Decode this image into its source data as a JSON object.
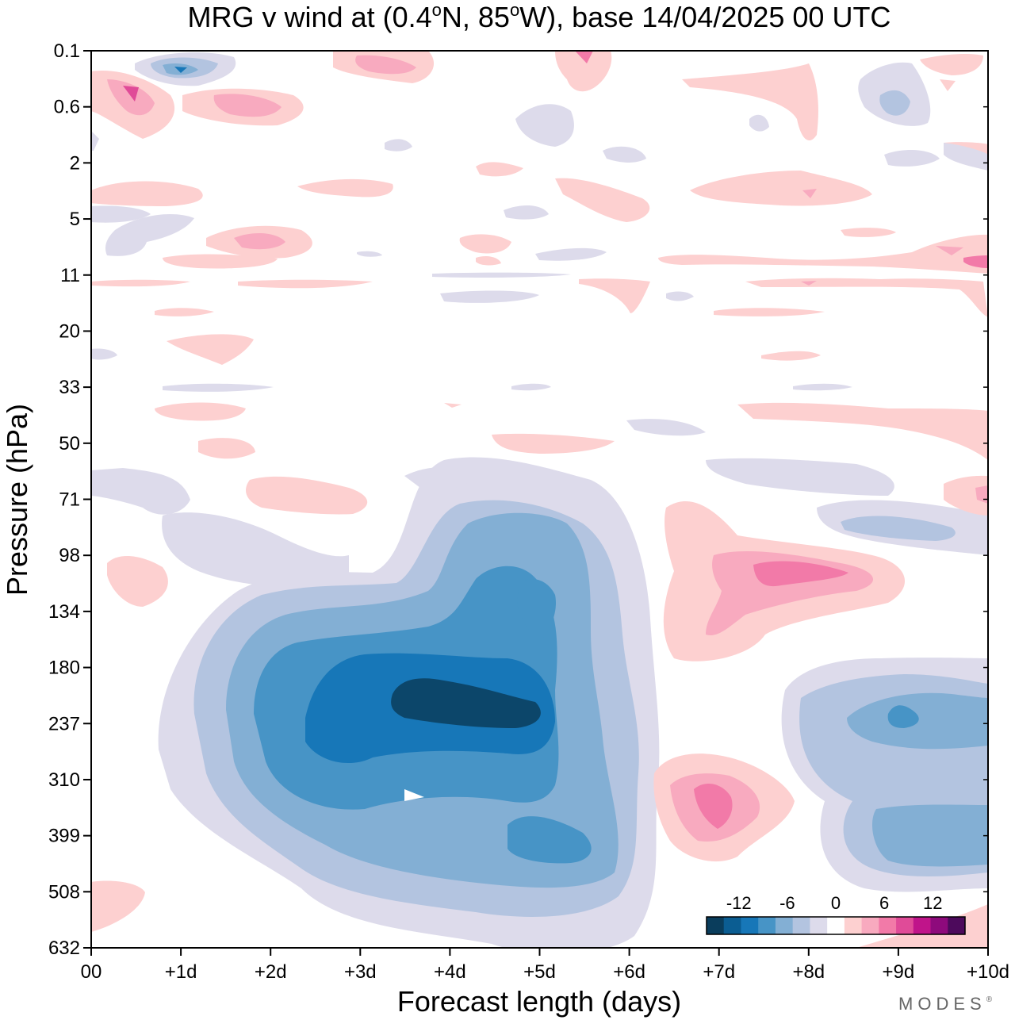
{
  "chart_data": {
    "type": "heatmap",
    "subtype": "filled-contour",
    "title": "MRG v wind at (0.4°N, 85°W),  base 14/04/2025  00 UTC",
    "title_parts": {
      "prefix": "MRG v wind at (0.4",
      "lat_deg": "o",
      "lat_suffix": "N, 85",
      "lon_deg": "o",
      "rest": "W),  base 14/04/2025  00 UTC"
    },
    "xlabel": "Forecast length (days)",
    "ylabel": "Pressure (hPa)",
    "x_ticks": [
      "00",
      "+1d",
      "+2d",
      "+3d",
      "+4d",
      "+5d",
      "+6d",
      "+7d",
      "+8d",
      "+9d",
      "+10d"
    ],
    "xlim_days": [
      0,
      10
    ],
    "y_ticks": [
      "0.1",
      "0.6",
      "2",
      "5",
      "11",
      "20",
      "33",
      "50",
      "71",
      "98",
      "134",
      "180",
      "237",
      "310",
      "399",
      "508",
      "632"
    ],
    "y_scale": "log-pressure, top 0.1 hPa to bottom 632 hPa",
    "colorbar": {
      "tick_labels": [
        "-12",
        "-6",
        "0",
        "6",
        "12"
      ],
      "tick_values": [
        -12,
        -6,
        0,
        6,
        12
      ],
      "levels": [
        -16,
        -14,
        -12,
        -10,
        -8,
        -6,
        -4,
        -2,
        2,
        4,
        6,
        8,
        10,
        12,
        14,
        16
      ],
      "colors": [
        "#0a3d5c",
        "#0b5d92",
        "#1777b8",
        "#4794c6",
        "#83afd4",
        "#b3c4e0",
        "#dddbeb",
        "#ffffff",
        "#fdd0d0",
        "#f8aabf",
        "#f27aa8",
        "#e04b98",
        "#c0148a",
        "#8e0a7c",
        "#4d0a5c"
      ]
    },
    "features": [
      {
        "name": "negative core",
        "x_days": [
          3.5,
          5.0
        ],
        "pressure_hPa": [
          200,
          250
        ],
        "value_min": -14
      },
      {
        "name": "negative upper-tropo lobe",
        "x_days": [
          0.8,
          6.2
        ],
        "pressure_hPa": [
          60,
          600
        ],
        "value_min": -4
      },
      {
        "name": "negative secondary",
        "x_days": [
          8.0,
          10.0
        ],
        "pressure_hPa": [
          150,
          550
        ],
        "value_min": -10
      },
      {
        "name": "positive 98 hPa",
        "x_days": [
          6.5,
          8.5
        ],
        "pressure_hPa": [
          70,
          180
        ],
        "value_max": 10
      },
      {
        "name": "positive 340 hPa",
        "x_days": [
          6.3,
          7.8
        ],
        "pressure_hPa": [
          270,
          450
        ],
        "value_max": 10
      },
      {
        "name": "negative near top",
        "x_days": [
          0.5,
          1.5
        ],
        "pressure_hPa": [
          0.1,
          0.5
        ],
        "value_min": -10
      },
      {
        "name": "positive near top",
        "x_days": [
          0.0,
          1.0
        ],
        "pressure_hPa": [
          0.2,
          1.0
        ],
        "value_max": 10
      }
    ],
    "grid": false,
    "legend": "colorbar bottom-right inside plot"
  },
  "branding": "MODES",
  "branding_mark": "®"
}
